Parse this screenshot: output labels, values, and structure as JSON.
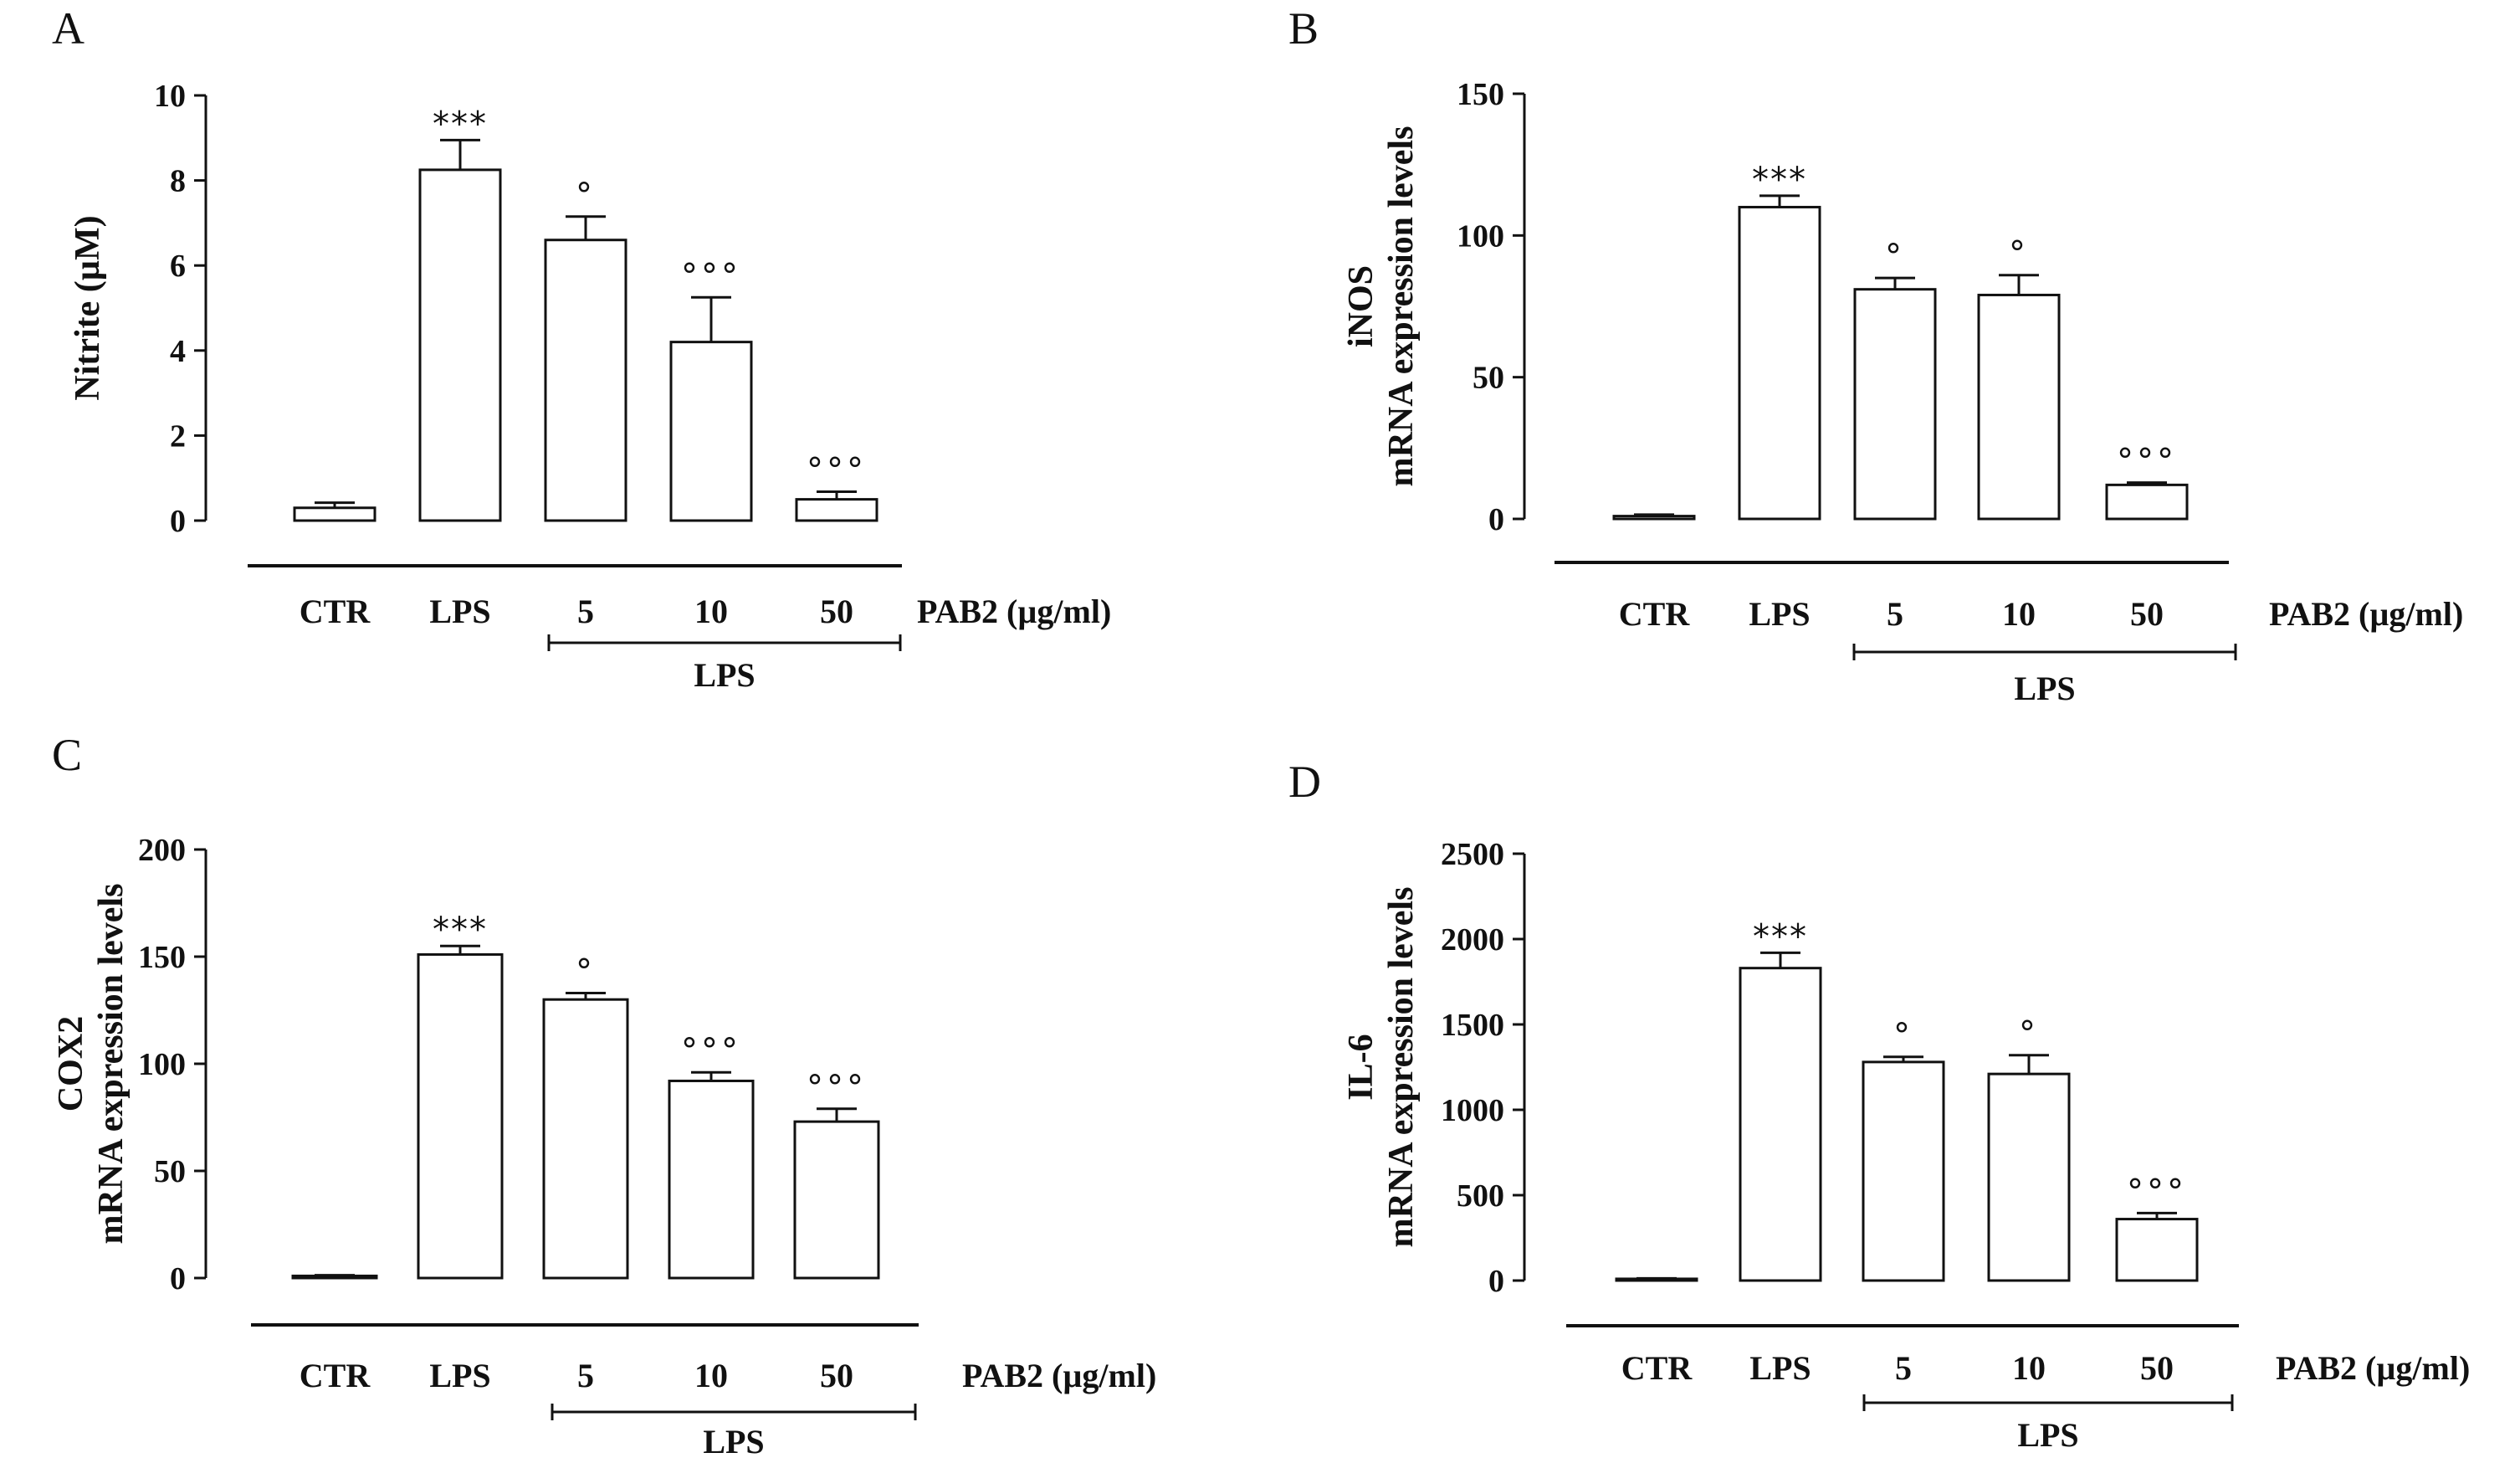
{
  "chart_data": [
    {
      "id": "A",
      "panel": "A",
      "type": "bar",
      "ylabel": "Nitrite (µM)",
      "ylabel_lines": [
        "Nitrite (µM)"
      ],
      "ylim": [
        0,
        10
      ],
      "yticks": [
        0,
        2,
        4,
        6,
        8,
        10
      ],
      "ytick_labels": [
        "0",
        "2",
        "4",
        "6",
        "8",
        "10"
      ],
      "categories": [
        "CTR",
        "LPS",
        "5",
        "10",
        "50"
      ],
      "values": [
        0.3,
        8.25,
        6.6,
        4.2,
        0.5
      ],
      "errors": [
        0.12,
        0.7,
        0.55,
        1.05,
        0.18
      ],
      "annotations": [
        "",
        "***",
        "°",
        "°°°",
        "°°°"
      ],
      "xaxis_unit_label": "PAB2 (µg/ml)",
      "group_label": "LPS"
    },
    {
      "id": "B",
      "panel": "B",
      "type": "bar",
      "ylabel": "iNOS mRNA expression levels",
      "ylabel_lines": [
        "iNOS",
        "mRNA expression levels"
      ],
      "ylim": [
        0,
        150
      ],
      "yticks": [
        0,
        50,
        100,
        150
      ],
      "ytick_labels": [
        "0",
        "50",
        "100",
        "150"
      ],
      "categories": [
        "CTR",
        "LPS",
        "5",
        "10",
        "50"
      ],
      "values": [
        1,
        110,
        81,
        79,
        12
      ],
      "errors": [
        0.5,
        4,
        4,
        7,
        0.8
      ],
      "annotations": [
        "",
        "***",
        "°",
        "°",
        "°°°"
      ],
      "xaxis_unit_label": "PAB2 (µg/ml)",
      "group_label": "LPS"
    },
    {
      "id": "C",
      "panel": "C",
      "type": "bar",
      "ylabel": "COX2 mRNA expression levels",
      "ylabel_lines": [
        "COX2",
        "mRNA expression levels"
      ],
      "ylim": [
        0,
        200
      ],
      "yticks": [
        0,
        50,
        100,
        150,
        200
      ],
      "ytick_labels": [
        "0",
        "50",
        "100",
        "150",
        "200"
      ],
      "categories": [
        "CTR",
        "LPS",
        "5",
        "10",
        "50"
      ],
      "values": [
        1,
        151,
        130,
        92,
        73
      ],
      "errors": [
        0.3,
        4,
        3,
        4,
        6
      ],
      "annotations": [
        "",
        "***",
        "°",
        "°°°",
        "°°°"
      ],
      "xaxis_unit_label": "PAB2 (µg/ml)",
      "group_label": "LPS"
    },
    {
      "id": "D",
      "panel": "D",
      "type": "bar",
      "ylabel": "IL-6 mRNA expression levels",
      "ylabel_lines": [
        "IL-6",
        "mRNA expression levels"
      ],
      "ylim": [
        0,
        2500
      ],
      "yticks": [
        0,
        500,
        1000,
        1500,
        2000,
        2500
      ],
      "ytick_labels": [
        "0",
        "500",
        "1000",
        "1500",
        "2000",
        "2500"
      ],
      "categories": [
        "CTR",
        "LPS",
        "5",
        "10",
        "50"
      ],
      "values": [
        10,
        1830,
        1280,
        1210,
        360
      ],
      "errors": [
        3,
        90,
        30,
        110,
        35
      ],
      "annotations": [
        "",
        "***",
        "°",
        "°",
        "°°°"
      ],
      "xaxis_unit_label": "PAB2 (µg/ml)",
      "group_label": "LPS"
    }
  ]
}
